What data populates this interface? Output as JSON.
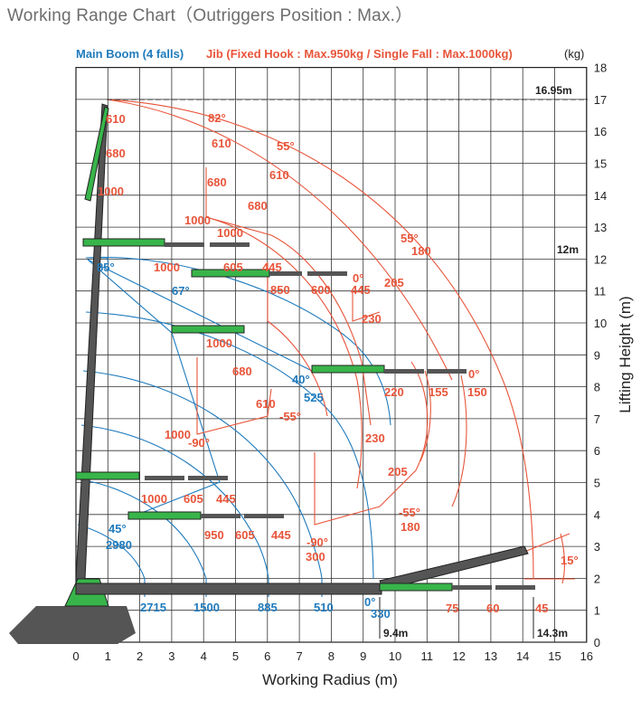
{
  "title": "Working Range Chart（Outriggers Position : Max.）",
  "legend": {
    "main_boom": "Main Boom (4 falls)",
    "jib": "Jib (Fixed Hook : Max.950kg / Single Fall : Max.1000kg)",
    "unit": "(kg)"
  },
  "axes": {
    "xlabel": "Working Radius (m)",
    "ylabel": "Lifting Height (m)",
    "xticks": [
      "0",
      "1",
      "2",
      "3",
      "4",
      "5",
      "6",
      "7",
      "8",
      "9",
      "10",
      "11",
      "12",
      "13",
      "14",
      "15",
      "16"
    ],
    "yticks": [
      "0",
      "1",
      "2",
      "3",
      "4",
      "5",
      "6",
      "7",
      "8",
      "9",
      "10",
      "11",
      "12",
      "13",
      "14",
      "15",
      "16",
      "17",
      "18"
    ]
  },
  "markers": {
    "max_height": "16.95m",
    "jib_height": "12m",
    "boom_radius": "9.4m",
    "jib_radius": "14.3m",
    "angle_15": "15°"
  },
  "colors": {
    "blue": "#1f7bbd",
    "red": "#e8553a",
    "boom": "#38b54a",
    "grid": "#333333"
  },
  "blue_labels": [
    {
      "t": "85°"
    },
    {
      "t": "67°"
    },
    {
      "t": "40°"
    },
    {
      "t": "525"
    },
    {
      "t": "45°"
    },
    {
      "t": "2980"
    },
    {
      "t": "2715"
    },
    {
      "t": "1500"
    },
    {
      "t": "885"
    },
    {
      "t": "510"
    },
    {
      "t": "0°"
    },
    {
      "t": "330"
    }
  ],
  "red_labels": [
    {
      "t": "610"
    },
    {
      "t": "680"
    },
    {
      "t": "1000"
    },
    {
      "t": "82°"
    },
    {
      "t": "610"
    },
    {
      "t": "55°"
    },
    {
      "t": "680"
    },
    {
      "t": "610"
    },
    {
      "t": "680"
    },
    {
      "t": "1000"
    },
    {
      "t": "1000"
    },
    {
      "t": "1000"
    },
    {
      "t": "605"
    },
    {
      "t": "445"
    },
    {
      "t": "850"
    },
    {
      "t": "600"
    },
    {
      "t": "0°"
    },
    {
      "t": "445"
    },
    {
      "t": "205"
    },
    {
      "t": "55°"
    },
    {
      "t": "180"
    },
    {
      "t": "230"
    },
    {
      "t": "1000"
    },
    {
      "t": "680"
    },
    {
      "t": "610"
    },
    {
      "t": "-55°"
    },
    {
      "t": "220"
    },
    {
      "t": "155"
    },
    {
      "t": "0°"
    },
    {
      "t": "150"
    },
    {
      "t": "1000"
    },
    {
      "t": "-90°"
    },
    {
      "t": "230"
    },
    {
      "t": "205"
    },
    {
      "t": "1000"
    },
    {
      "t": "605"
    },
    {
      "t": "445"
    },
    {
      "t": "-55°"
    },
    {
      "t": "180"
    },
    {
      "t": "950"
    },
    {
      "t": "605"
    },
    {
      "t": "445"
    },
    {
      "t": "-90°"
    },
    {
      "t": "300"
    },
    {
      "t": "75"
    },
    {
      "t": "60"
    },
    {
      "t": "45"
    }
  ]
}
